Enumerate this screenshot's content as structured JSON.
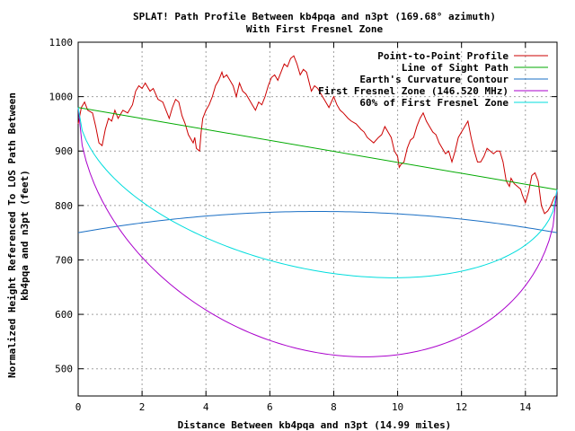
{
  "chart_data": {
    "type": "line",
    "title": "SPLAT! Path Profile Between kb4pqa and n3pt (169.68° azimuth)",
    "subtitle": "With First Fresnel Zone",
    "xlabel": "Distance Between kb4pqa and n3pt (14.99 miles)",
    "ylabel_line1": "Normalized Height Referenced To LOS Path Between",
    "ylabel_line2": "kb4pqa and n3pt (feet)",
    "xlim": [
      0,
      14.99
    ],
    "ylim": [
      450,
      1100
    ],
    "x_ticks": [
      0,
      2,
      4,
      6,
      8,
      10,
      12,
      14
    ],
    "x_tick_labels": [
      "0",
      "2",
      "4",
      "6",
      "8",
      "10",
      "12",
      "14"
    ],
    "y_ticks": [
      500,
      600,
      700,
      800,
      900,
      1000,
      1100
    ],
    "y_tick_labels": [
      "500",
      "600",
      "700",
      "800",
      "900",
      "1000",
      "1100"
    ],
    "grid": true,
    "legend_position": "top-right",
    "series": [
      {
        "name": "Point-to-Point Profile",
        "color": "#cc0000",
        "kind": "terrain",
        "points": [
          [
            0,
            950
          ],
          [
            0.1,
            980
          ],
          [
            0.2,
            990
          ],
          [
            0.3,
            975
          ],
          [
            0.45,
            970
          ],
          [
            0.55,
            945
          ],
          [
            0.65,
            915
          ],
          [
            0.75,
            910
          ],
          [
            0.85,
            940
          ],
          [
            0.95,
            960
          ],
          [
            1.05,
            955
          ],
          [
            1.15,
            975
          ],
          [
            1.25,
            960
          ],
          [
            1.4,
            975
          ],
          [
            1.55,
            970
          ],
          [
            1.7,
            985
          ],
          [
            1.8,
            1010
          ],
          [
            1.9,
            1020
          ],
          [
            2.0,
            1015
          ],
          [
            2.1,
            1025
          ],
          [
            2.25,
            1010
          ],
          [
            2.35,
            1015
          ],
          [
            2.5,
            995
          ],
          [
            2.65,
            990
          ],
          [
            2.75,
            975
          ],
          [
            2.85,
            960
          ],
          [
            2.95,
            980
          ],
          [
            3.05,
            995
          ],
          [
            3.15,
            990
          ],
          [
            3.25,
            965
          ],
          [
            3.35,
            950
          ],
          [
            3.45,
            930
          ],
          [
            3.55,
            920
          ],
          [
            3.6,
            915
          ],
          [
            3.65,
            925
          ],
          [
            3.7,
            905
          ],
          [
            3.8,
            900
          ],
          [
            3.85,
            935
          ],
          [
            3.9,
            960
          ],
          [
            4.0,
            975
          ],
          [
            4.1,
            985
          ],
          [
            4.2,
            1000
          ],
          [
            4.3,
            1020
          ],
          [
            4.4,
            1030
          ],
          [
            4.5,
            1045
          ],
          [
            4.55,
            1035
          ],
          [
            4.65,
            1040
          ],
          [
            4.75,
            1030
          ],
          [
            4.85,
            1020
          ],
          [
            4.95,
            1000
          ],
          [
            5.05,
            1025
          ],
          [
            5.15,
            1010
          ],
          [
            5.25,
            1005
          ],
          [
            5.35,
            995
          ],
          [
            5.45,
            985
          ],
          [
            5.55,
            975
          ],
          [
            5.65,
            990
          ],
          [
            5.75,
            985
          ],
          [
            5.85,
            1000
          ],
          [
            5.95,
            1020
          ],
          [
            6.05,
            1035
          ],
          [
            6.15,
            1040
          ],
          [
            6.25,
            1030
          ],
          [
            6.35,
            1045
          ],
          [
            6.45,
            1060
          ],
          [
            6.55,
            1055
          ],
          [
            6.65,
            1070
          ],
          [
            6.75,
            1075
          ],
          [
            6.85,
            1060
          ],
          [
            6.95,
            1040
          ],
          [
            7.05,
            1050
          ],
          [
            7.15,
            1045
          ],
          [
            7.3,
            1010
          ],
          [
            7.4,
            1020
          ],
          [
            7.5,
            1015
          ],
          [
            7.6,
            1005
          ],
          [
            7.75,
            990
          ],
          [
            7.85,
            980
          ],
          [
            8.0,
            1000
          ],
          [
            8.1,
            985
          ],
          [
            8.2,
            975
          ],
          [
            8.3,
            970
          ],
          [
            8.45,
            960
          ],
          [
            8.55,
            955
          ],
          [
            8.7,
            950
          ],
          [
            8.85,
            940
          ],
          [
            8.95,
            935
          ],
          [
            9.05,
            925
          ],
          [
            9.15,
            920
          ],
          [
            9.25,
            915
          ],
          [
            9.4,
            925
          ],
          [
            9.5,
            930
          ],
          [
            9.6,
            945
          ],
          [
            9.7,
            935
          ],
          [
            9.8,
            925
          ],
          [
            9.9,
            900
          ],
          [
            10.0,
            890
          ],
          [
            10.05,
            870
          ],
          [
            10.1,
            875
          ],
          [
            10.2,
            880
          ],
          [
            10.3,
            905
          ],
          [
            10.4,
            920
          ],
          [
            10.5,
            925
          ],
          [
            10.6,
            945
          ],
          [
            10.7,
            960
          ],
          [
            10.8,
            970
          ],
          [
            10.9,
            955
          ],
          [
            11.0,
            945
          ],
          [
            11.1,
            935
          ],
          [
            11.2,
            930
          ],
          [
            11.3,
            915
          ],
          [
            11.4,
            905
          ],
          [
            11.5,
            895
          ],
          [
            11.6,
            900
          ],
          [
            11.7,
            880
          ],
          [
            11.8,
            900
          ],
          [
            11.9,
            925
          ],
          [
            12.0,
            935
          ],
          [
            12.1,
            945
          ],
          [
            12.2,
            955
          ],
          [
            12.3,
            925
          ],
          [
            12.4,
            900
          ],
          [
            12.5,
            880
          ],
          [
            12.6,
            880
          ],
          [
            12.7,
            890
          ],
          [
            12.8,
            905
          ],
          [
            12.9,
            900
          ],
          [
            13.0,
            895
          ],
          [
            13.1,
            900
          ],
          [
            13.2,
            900
          ],
          [
            13.3,
            880
          ],
          [
            13.4,
            845
          ],
          [
            13.5,
            835
          ],
          [
            13.55,
            850
          ],
          [
            13.65,
            840
          ],
          [
            13.75,
            835
          ],
          [
            13.85,
            830
          ],
          [
            13.9,
            820
          ],
          [
            14.0,
            805
          ],
          [
            14.1,
            825
          ],
          [
            14.2,
            855
          ],
          [
            14.3,
            860
          ],
          [
            14.4,
            845
          ],
          [
            14.5,
            800
          ],
          [
            14.6,
            785
          ],
          [
            14.7,
            790
          ],
          [
            14.8,
            800
          ],
          [
            14.9,
            815
          ],
          [
            14.99,
            820
          ]
        ]
      },
      {
        "name": "Line of Sight Path",
        "color": "#00aa00",
        "kind": "line",
        "points": [
          [
            0,
            980
          ],
          [
            14.99,
            829
          ]
        ]
      },
      {
        "name": "Earth's Curvature Contour",
        "color": "#1a6fc4",
        "kind": "arc",
        "start": 750,
        "mid": 789,
        "end": 750
      },
      {
        "name": "First Fresnel Zone (146.520 MHz)",
        "color": "#aa00cc",
        "kind": "fresnel",
        "radius_ft": 375
      },
      {
        "name": "60% of First Fresnel Zone",
        "color": "#00dddd",
        "kind": "fresnel",
        "radius_ft": 225
      }
    ]
  }
}
